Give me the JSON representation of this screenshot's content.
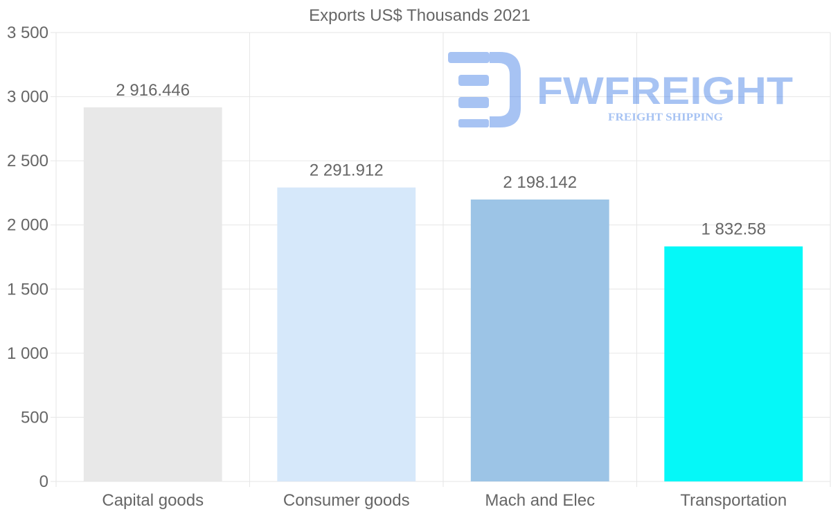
{
  "chart_data": {
    "type": "bar",
    "title": "Exports US$ Thousands 2021",
    "categories": [
      "Capital goods",
      "Consumer goods",
      "Mach and Elec",
      "Transportation"
    ],
    "values": [
      2916.446,
      2291.912,
      2198.142,
      1832.58
    ],
    "value_labels": [
      "2 916.446",
      "2 291.912",
      "2 198.142",
      "1 832.58"
    ],
    "bar_colors": [
      "#e8e8e8",
      "#d6e8fa",
      "#9cc4e6",
      "#05f8f8"
    ],
    "ylim": [
      0,
      3500
    ],
    "yticks": [
      0,
      500,
      1000,
      1500,
      2000,
      2500,
      3000,
      3500
    ],
    "ytick_labels": [
      "0",
      "500",
      "1 000",
      "1 500",
      "2 000",
      "2 500",
      "3 000",
      "3 500"
    ],
    "xlabel": "",
    "ylabel": "",
    "grid": true,
    "legend": "none"
  },
  "watermark": {
    "brand": "FWFREIGHT",
    "tagline": "FREIGHT SHIPPING",
    "color": "#3d7be6"
  }
}
